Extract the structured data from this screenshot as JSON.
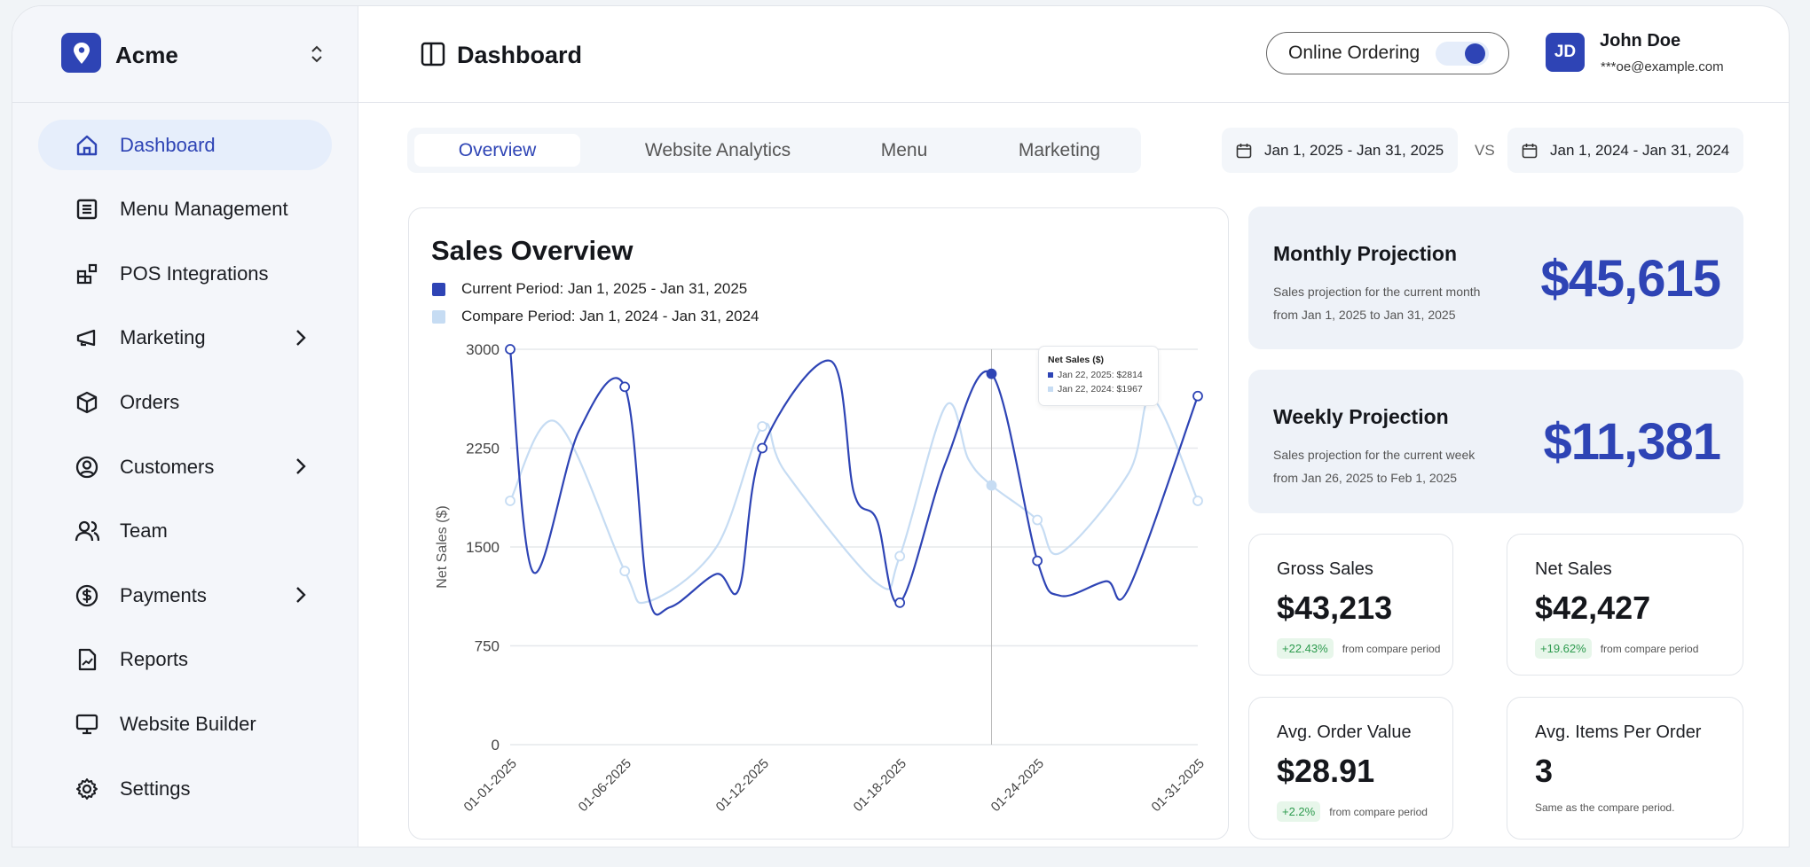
{
  "brand": {
    "name": "Acme"
  },
  "sidebar": {
    "items": [
      {
        "label": "Dashboard",
        "icon": "home-icon",
        "active": true
      },
      {
        "label": "Menu Management",
        "icon": "list-icon"
      },
      {
        "label": "POS Integrations",
        "icon": "blocks-icon"
      },
      {
        "label": "Marketing",
        "icon": "megaphone-icon",
        "chevron": true
      },
      {
        "label": "Orders",
        "icon": "box-icon"
      },
      {
        "label": "Customers",
        "icon": "user-circle-icon",
        "chevron": true
      },
      {
        "label": "Team",
        "icon": "users-icon"
      },
      {
        "label": "Payments",
        "icon": "dollar-circle-icon",
        "chevron": true
      },
      {
        "label": "Reports",
        "icon": "report-icon"
      },
      {
        "label": "Website Builder",
        "icon": "monitor-icon"
      },
      {
        "label": "Settings",
        "icon": "gear-icon"
      }
    ]
  },
  "header": {
    "title": "Dashboard",
    "online_ordering": "Online Ordering",
    "online_ordering_on": true,
    "user": {
      "initials": "JD",
      "name": "John Doe",
      "email": "***oe@example.com"
    }
  },
  "tabs": [
    "Overview",
    "Website Analytics",
    "Menu",
    "Marketing"
  ],
  "dates": {
    "current": "Jan 1, 2025 - Jan 31, 2025",
    "vs": "VS",
    "compare": "Jan 1, 2024 - Jan 31, 2024"
  },
  "colors": {
    "accent": "#2e44b5",
    "compare": "#c6dcf3"
  },
  "chart": {
    "title": "Sales Overview",
    "legend_current": "Current Period: Jan 1, 2025 - Jan 31, 2025",
    "legend_compare": "Compare Period: Jan 1, 2024 - Jan 31, 2024",
    "tooltip": {
      "title": "Net Sales ($)",
      "current": "Jan 22, 2025: $2814",
      "compare": "Jan 22, 2024: $1967"
    }
  },
  "chart_data": {
    "type": "line",
    "ylabel": "Net Sales ($)",
    "ylim": [
      0,
      3000
    ],
    "yticks": [
      0,
      750,
      1500,
      2250,
      3000
    ],
    "xticks": [
      {
        "day": 1,
        "label": "01-01-2025"
      },
      {
        "day": 6,
        "label": "01-06-2025"
      },
      {
        "day": 12,
        "label": "01-12-2025"
      },
      {
        "day": 18,
        "label": "01-18-2025"
      },
      {
        "day": 24,
        "label": "01-24-2025"
      },
      {
        "day": 31,
        "label": "01-31-2025"
      }
    ],
    "xlim": [
      1,
      31
    ],
    "grid": true,
    "highlight_day": 22,
    "series": [
      {
        "name": "Current Period",
        "points": [
          [
            1,
            3000
          ],
          [
            2,
            1310
          ],
          [
            4,
            2380
          ],
          [
            6,
            2715
          ],
          [
            7,
            1155
          ],
          [
            8,
            1045
          ],
          [
            10,
            1295
          ],
          [
            11,
            1190
          ],
          [
            12,
            2250
          ],
          [
            15,
            2910
          ],
          [
            16,
            1910
          ],
          [
            17,
            1705
          ],
          [
            18,
            1077
          ],
          [
            20,
            2140
          ],
          [
            22,
            2814
          ],
          [
            24,
            1395
          ],
          [
            25,
            1130
          ],
          [
            27,
            1240
          ],
          [
            28,
            1190
          ],
          [
            31,
            2645
          ]
        ],
        "markers": [
          1,
          6,
          12,
          18,
          22,
          24,
          31
        ]
      },
      {
        "name": "Compare Period",
        "points": [
          [
            1,
            1850
          ],
          [
            3,
            2450
          ],
          [
            6,
            1317
          ],
          [
            7,
            1085
          ],
          [
            10,
            1500
          ],
          [
            12,
            2415
          ],
          [
            13,
            2070
          ],
          [
            17,
            1225
          ],
          [
            18,
            1430
          ],
          [
            20,
            2570
          ],
          [
            21,
            2163
          ],
          [
            22,
            1967
          ],
          [
            24,
            1705
          ],
          [
            25,
            1455
          ],
          [
            28,
            2065
          ],
          [
            29,
            2630
          ],
          [
            31,
            1850
          ]
        ],
        "markers": [
          1,
          6,
          12,
          18,
          22,
          24,
          31
        ]
      }
    ]
  },
  "projections": [
    {
      "title": "Monthly Projection",
      "line1": "Sales projection for the current month",
      "line2": "from Jan 1, 2025 to Jan 31, 2025",
      "value": "$45,615"
    },
    {
      "title": "Weekly Projection",
      "line1": "Sales projection for the current week",
      "line2": "from Jan 26, 2025 to Feb 1, 2025",
      "value": "$11,381"
    }
  ],
  "stats": [
    {
      "title": "Gross Sales",
      "value": "$43,213",
      "change": "+22.43%",
      "note": "from compare period"
    },
    {
      "title": "Net Sales",
      "value": "$42,427",
      "change": "+19.62%",
      "note": "from compare period"
    },
    {
      "title": "Avg. Order Value",
      "value": "$28.91",
      "change": "+2.2%",
      "note": "from compare period"
    },
    {
      "title": "Avg. Items Per Order",
      "value": "3",
      "note": "Same as the compare period."
    }
  ]
}
